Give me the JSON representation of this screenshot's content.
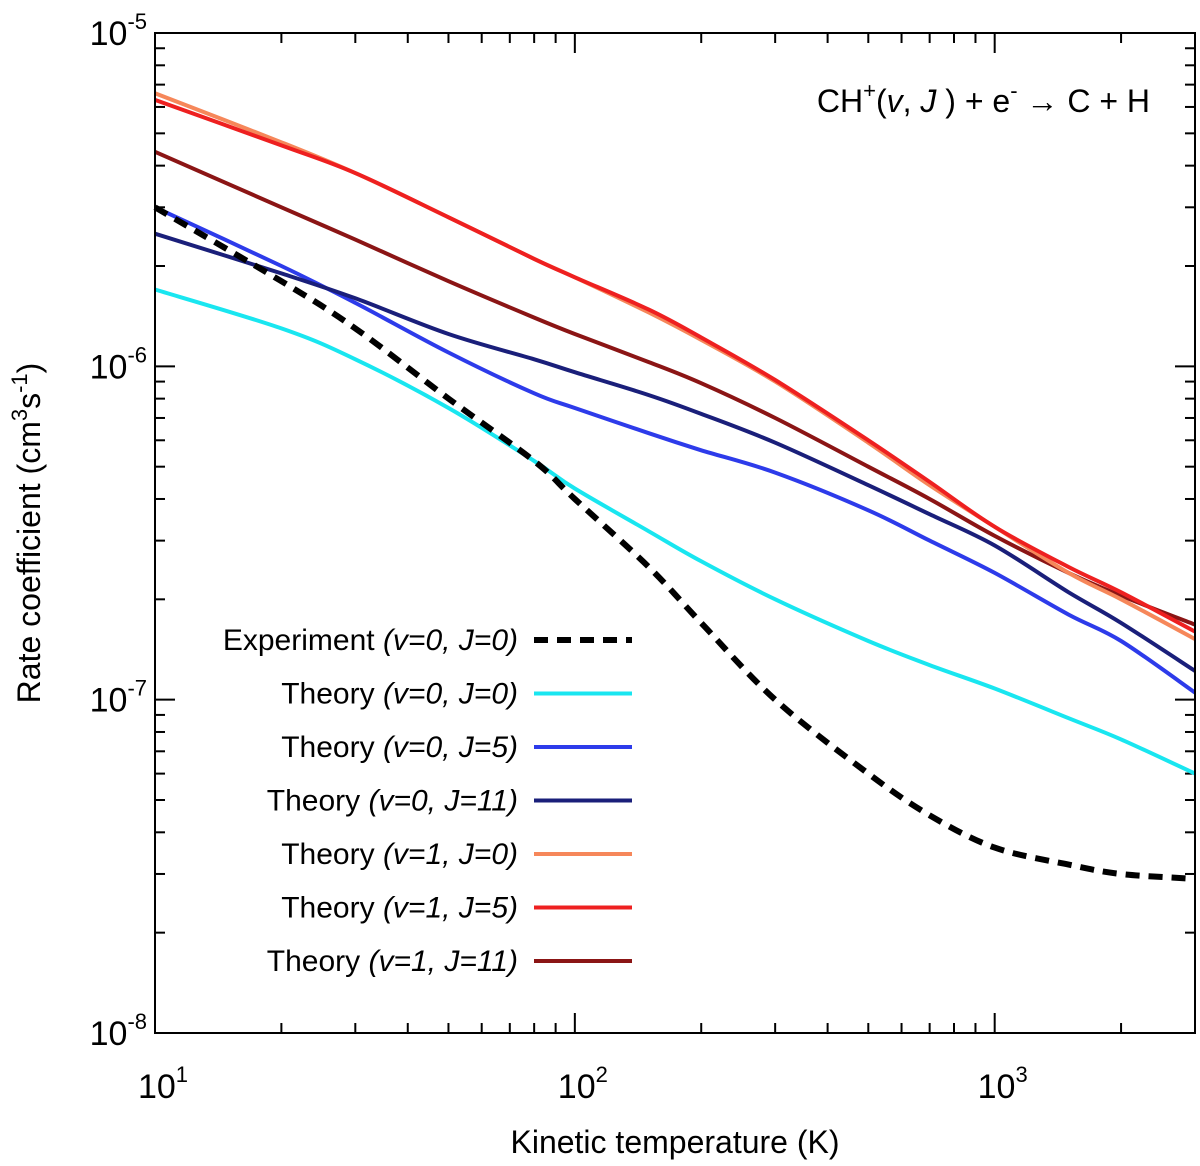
{
  "chart_data": {
    "type": "line",
    "title": "",
    "annotation": {
      "species": "CH",
      "species_sup": "+",
      "state_open": "(",
      "state_v": "v",
      "state_sep": ", ",
      "state_J": "J",
      "state_close": " ) + e",
      "electron_sup": "-",
      "products": " → C + H"
    },
    "xlabel": "Kinetic temperature (K)",
    "ylabel": "Rate coefficient (cm",
    "ylabel_sup1": "3",
    "ylabel_mid": "s",
    "ylabel_sup2": "-1",
    "ylabel_end": ")",
    "x_scale": "log",
    "y_scale": "log",
    "xlim": [
      10,
      3000
    ],
    "ylim": [
      1e-08,
      1e-05
    ],
    "x_ticks": [
      {
        "value": 10,
        "base": "10",
        "exp": "1"
      },
      {
        "value": 100,
        "base": "10",
        "exp": "2"
      },
      {
        "value": 1000,
        "base": "10",
        "exp": "3"
      }
    ],
    "y_ticks": [
      {
        "value": 1e-08,
        "base": "10",
        "exp": "-8"
      },
      {
        "value": 1e-07,
        "base": "10",
        "exp": "-7"
      },
      {
        "value": 1e-06,
        "base": "10",
        "exp": "-6"
      },
      {
        "value": 1e-05,
        "base": "10",
        "exp": "-5"
      }
    ],
    "grid": false,
    "legend_position": "bottom-left",
    "series": [
      {
        "label": "Experiment",
        "state": "(v=0, J=0)",
        "color": "#000000",
        "dashed": true,
        "x": [
          10,
          20,
          30,
          50,
          80,
          100,
          150,
          200,
          300,
          500,
          700,
          1000,
          1500,
          2000,
          3000
        ],
        "y": [
          3e-06,
          1.8e-06,
          1.3e-06,
          8e-07,
          5.2e-07,
          4e-07,
          2.5e-07,
          1.7e-07,
          1e-07,
          6e-08,
          4.5e-08,
          3.6e-08,
          3.2e-08,
          3e-08,
          2.9e-08
        ]
      },
      {
        "label": "Theory",
        "state": "(v=0, J=0)",
        "color": "#19e6f0",
        "dashed": false,
        "x": [
          10,
          20,
          30,
          50,
          80,
          100,
          150,
          200,
          300,
          500,
          700,
          1000,
          1500,
          2000,
          3000
        ],
        "y": [
          1.7e-06,
          1.3e-06,
          1.05e-06,
          7.5e-07,
          5.2e-07,
          4.3e-07,
          3.2e-07,
          2.6e-07,
          2e-07,
          1.5e-07,
          1.27e-07,
          1.08e-07,
          8.8e-08,
          7.6e-08,
          6e-08
        ]
      },
      {
        "label": "Theory",
        "state": "(v=0, J=5)",
        "color": "#2d3bea",
        "dashed": false,
        "x": [
          10,
          20,
          30,
          50,
          80,
          100,
          150,
          200,
          300,
          500,
          700,
          1000,
          1500,
          2000,
          3000
        ],
        "y": [
          3e-06,
          2e-06,
          1.55e-06,
          1.1e-06,
          8.3e-07,
          7.5e-07,
          6.3e-07,
          5.6e-07,
          4.8e-07,
          3.7e-07,
          3e-07,
          2.4e-07,
          1.8e-07,
          1.5e-07,
          1.05e-07
        ]
      },
      {
        "label": "Theory",
        "state": "(v=0, J=11)",
        "color": "#1a1f7a",
        "dashed": false,
        "x": [
          10,
          20,
          30,
          50,
          80,
          100,
          150,
          200,
          300,
          500,
          700,
          1000,
          1500,
          2000,
          3000
        ],
        "y": [
          2.5e-06,
          1.9e-06,
          1.6e-06,
          1.25e-06,
          1.05e-06,
          9.6e-07,
          8.2e-07,
          7.2e-07,
          5.9e-07,
          4.4e-07,
          3.6e-07,
          2.9e-07,
          2.1e-07,
          1.7e-07,
          1.22e-07
        ]
      },
      {
        "label": "Theory",
        "state": "(v=1, J=0)",
        "color": "#f6875a",
        "dashed": false,
        "x": [
          10,
          20,
          30,
          50,
          80,
          100,
          150,
          200,
          300,
          500,
          700,
          1000,
          1500,
          2000,
          3000
        ],
        "y": [
          6.6e-06,
          4.7e-06,
          3.8e-06,
          2.8e-06,
          2.1e-06,
          1.85e-06,
          1.45e-06,
          1.2e-06,
          9e-07,
          5.9e-07,
          4.4e-07,
          3.3e-07,
          2.4e-07,
          2e-07,
          1.52e-07
        ]
      },
      {
        "label": "Theory",
        "state": "(v=1, J=5)",
        "color": "#ee2020",
        "dashed": false,
        "x": [
          10,
          20,
          30,
          50,
          80,
          100,
          150,
          200,
          300,
          500,
          700,
          1000,
          1500,
          2000,
          3000
        ],
        "y": [
          6.3e-06,
          4.6e-06,
          3.8e-06,
          2.8e-06,
          2.1e-06,
          1.85e-06,
          1.48e-06,
          1.22e-06,
          9.1e-07,
          6e-07,
          4.5e-07,
          3.3e-07,
          2.5e-07,
          2.1e-07,
          1.6e-07
        ]
      },
      {
        "label": "Theory",
        "state": "(v=1, J=11)",
        "color": "#8b1515",
        "dashed": false,
        "x": [
          10,
          20,
          30,
          50,
          80,
          100,
          150,
          200,
          300,
          500,
          700,
          1000,
          1500,
          2000,
          3000
        ],
        "y": [
          4.4e-06,
          3e-06,
          2.4e-06,
          1.8e-06,
          1.4e-06,
          1.25e-06,
          1.03e-06,
          8.9e-07,
          7e-07,
          5e-07,
          4e-07,
          3.1e-07,
          2.4e-07,
          2.05e-07,
          1.68e-07
        ]
      }
    ]
  }
}
